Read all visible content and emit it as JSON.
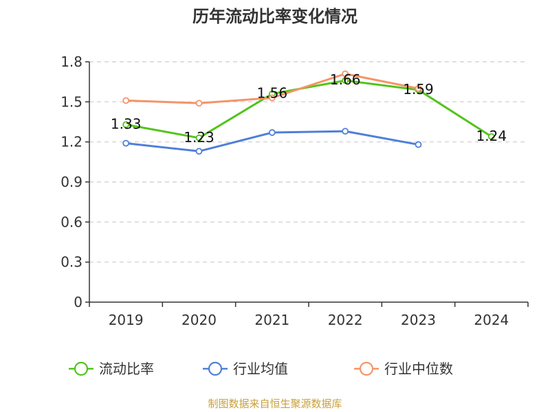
{
  "chart_data": {
    "type": "line",
    "title": "历年流动比率变化情况",
    "categories": [
      "2019",
      "2020",
      "2021",
      "2022",
      "2023",
      "2024"
    ],
    "y_ticks": [
      "0",
      "0.3",
      "0.6",
      "0.9",
      "1.2",
      "1.5",
      "1.8"
    ],
    "ylim": [
      0,
      1.8
    ],
    "grid": true,
    "legend_position": "bottom",
    "series": [
      {
        "name": "流动比率",
        "color": "#52c41a",
        "values": [
          1.33,
          1.23,
          1.56,
          1.66,
          1.59,
          1.24
        ],
        "labels": [
          "1.33",
          "1.23",
          "1.56",
          "1.66",
          "1.59",
          "1.24"
        ]
      },
      {
        "name": "行业均值",
        "color": "#4f7fd9",
        "values": [
          1.19,
          1.13,
          1.27,
          1.28,
          1.18,
          null
        ]
      },
      {
        "name": "行业中位数",
        "color": "#f59466",
        "values": [
          1.51,
          1.49,
          1.53,
          1.71,
          1.6,
          null
        ]
      }
    ],
    "source": "制图数据来自恒生聚源数据库"
  }
}
